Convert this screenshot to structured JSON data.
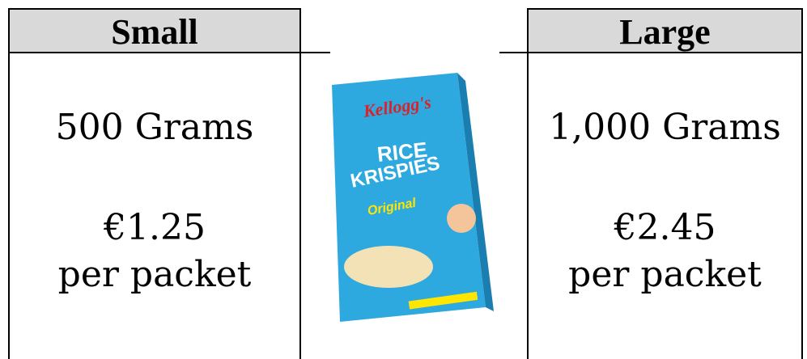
{
  "small": {
    "header": "Small",
    "weight": "500 Grams",
    "price": "€1.25",
    "unit": "per packet"
  },
  "large": {
    "header": "Large",
    "weight": "1,000 Grams",
    "price": "€2.45",
    "unit": "per packet"
  },
  "product": {
    "brand": "Kellogg's",
    "name_line1": "RICE",
    "name_line2": "KRISPIES",
    "variant": "Original"
  }
}
